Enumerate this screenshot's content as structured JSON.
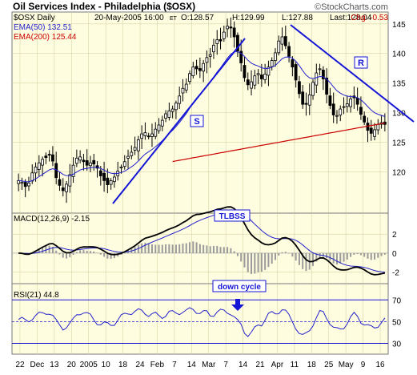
{
  "chart_data": {
    "type": "candlestick",
    "title": "Oil Services Index - Philadelphia ($OSX)",
    "copyright": "©StockCharts.com",
    "header": {
      "symbol": "$OSX Daily",
      "date": "20-May-2005 16:00",
      "tz": "ET",
      "open": "O:128.57",
      "high": "H:129.99",
      "low": "L:127.88",
      "last": "Last:128.04",
      "change": "Chg: -0.53"
    },
    "legend": {
      "ema50": "EMA(50) 132.51",
      "ema200": "EMA(200) 125.44"
    },
    "price_axis": {
      "ylim": [
        113,
        147
      ],
      "ticks": [
        120,
        125,
        130,
        135,
        140,
        145
      ]
    },
    "x_labels": [
      "22",
      "Dec",
      "13",
      "20",
      "2005",
      "10",
      "18",
      "24",
      "Feb",
      "7",
      "14",
      "Mar",
      "7",
      "14",
      "21",
      "Apr",
      "11",
      "18",
      "25",
      "May",
      "9",
      "16"
    ],
    "annotations": {
      "support": "S",
      "resistance": "R",
      "macd_note": "TLBSS",
      "rsi_note": "down cycle"
    },
    "close_series": [
      118.5,
      118.2,
      117.5,
      118.1,
      119.8,
      120.8,
      121.5,
      122.1,
      122.4,
      122.8,
      121.8,
      119.0,
      117.7,
      116.8,
      117.9,
      119.5,
      121.1,
      122.3,
      122.5,
      121.7,
      121.1,
      121.5,
      121.3,
      120.6,
      119.3,
      118.5,
      117.8,
      118.5,
      119.1,
      120.1,
      120.8,
      121.7,
      122.6,
      123.3,
      124.1,
      125.4,
      126.4,
      126.6,
      125.9,
      126.4,
      127.2,
      127.9,
      128.7,
      129.8,
      130.3,
      130.6,
      131.6,
      132.8,
      134.1,
      134.8,
      136.6,
      137.7,
      137.4,
      137.1,
      138.3,
      139.3,
      139.8,
      141.4,
      142.3,
      142.1,
      143.6,
      144.6,
      144.3,
      142.8,
      140.4,
      138.4,
      135.9,
      134.7,
      135.2,
      136.2,
      136.6,
      135.7,
      136.5,
      137.7,
      138.8,
      140.1,
      142.1,
      142.8,
      141.3,
      139.5,
      137.7,
      135.5,
      133.2,
      131.4,
      131.4,
      133.0,
      135.1,
      136.7,
      137.4,
      135.7,
      133.1,
      131.2,
      129.6,
      129.5,
      130.6,
      131.0,
      131.5,
      132.3,
      132.5,
      131.4,
      129.7,
      128.4,
      127.0,
      126.5,
      127.1,
      128.0,
      128.3,
      128.0
    ],
    "macd": {
      "label": "MACD(12,26,9) -2.15",
      "ylim": [
        -3.2,
        4.2
      ],
      "ticks": [
        2,
        0,
        -2
      ]
    },
    "rsi": {
      "label": "RSI(21) 44.8",
      "ylim": [
        20,
        85
      ],
      "ticks": [
        70,
        50,
        30
      ]
    }
  }
}
